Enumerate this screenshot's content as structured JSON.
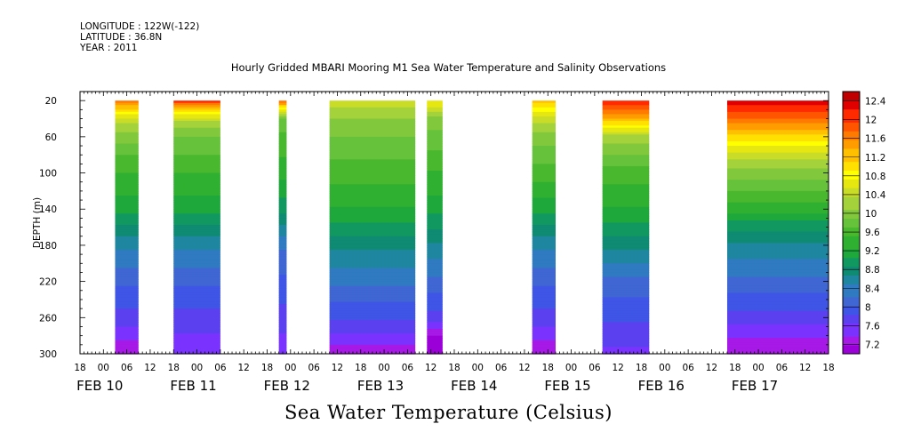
{
  "header": {
    "longitude": "LONGITUDE : 122W(-122)",
    "latitude": "LATITUDE : 36.8N",
    "year": "YEAR : 2011"
  },
  "title": "Hourly Gridded MBARI Mooring M1 Sea Water Temperature and Salinity Observations",
  "bottom_title": "Sea Water Temperature (Celsius)",
  "chart_data": {
    "type": "heatmap",
    "title": "Hourly Gridded MBARI Mooring M1 Sea Water Temperature and Salinity Observations",
    "xlabel": "",
    "ylabel": "DEPTH (m)",
    "colorbar_label": "Sea Water Temperature (Celsius)",
    "x_start": "2011-02-09 18:00",
    "x_end": "2011-02-17 18:00",
    "hour_tick_labels": [
      "18",
      "00",
      "06",
      "12",
      "18",
      "00",
      "06",
      "12",
      "18",
      "00",
      "06",
      "12",
      "18",
      "00",
      "06",
      "12",
      "18",
      "00",
      "06",
      "12",
      "18",
      "00",
      "06",
      "12",
      "18",
      "00",
      "06",
      "12",
      "18",
      "00",
      "06",
      "12",
      "18"
    ],
    "date_labels": [
      "FEB 10",
      "FEB 11",
      "FEB 12",
      "FEB 13",
      "FEB 14",
      "FEB 15",
      "FEB 16",
      "FEB 17"
    ],
    "depth_ticks": [
      20,
      60,
      100,
      140,
      180,
      220,
      260,
      300
    ],
    "ylim": [
      300,
      10
    ],
    "y_inverted": true,
    "colorbar_levels": [
      7.2,
      7.6,
      8,
      8.4,
      8.8,
      9.2,
      9.6,
      10,
      10.4,
      10.8,
      11.2,
      11.6,
      12,
      12.4
    ],
    "colors": [
      "#9b00d9",
      "#a619e6",
      "#7a33ff",
      "#5a40ee",
      "#3f55e6",
      "#3f66d2",
      "#2f7ac0",
      "#1f86a0",
      "#0f8a73",
      "#109860",
      "#1ea83c",
      "#30b030",
      "#4ab82e",
      "#66c23a",
      "#82c83c",
      "#a4d23a",
      "#c8dc28",
      "#e6e610",
      "#ffff00",
      "#ffe000",
      "#ffc000",
      "#ff9c00",
      "#ff7a00",
      "#ff5400",
      "#ff2a00",
      "#e00000",
      "#c00000"
    ],
    "segments": [
      {
        "start": "2011-02-10 03:00",
        "end": "2011-02-10 09:00",
        "profile": [
          [
            20,
            11.6
          ],
          [
            40,
            10.4
          ],
          [
            60,
            10.0
          ],
          [
            80,
            9.7
          ],
          [
            100,
            9.5
          ],
          [
            140,
            9.2
          ],
          [
            160,
            8.9
          ],
          [
            180,
            8.6
          ],
          [
            220,
            8.2
          ],
          [
            260,
            7.9
          ],
          [
            285,
            7.6
          ],
          [
            300,
            7.4
          ]
        ]
      },
      {
        "start": "2011-02-10 18:00",
        "end": "2011-02-11 06:00",
        "profile": [
          [
            20,
            12.0
          ],
          [
            30,
            11.0
          ],
          [
            45,
            10.2
          ],
          [
            60,
            9.9
          ],
          [
            100,
            9.5
          ],
          [
            140,
            9.2
          ],
          [
            160,
            8.9
          ],
          [
            180,
            8.6
          ],
          [
            220,
            8.2
          ],
          [
            260,
            7.9
          ],
          [
            290,
            7.7
          ],
          [
            300,
            7.6
          ]
        ]
      },
      {
        "start": "2011-02-11 21:00",
        "end": "2011-02-11 23:00",
        "profile": [
          [
            20,
            11.6
          ],
          [
            40,
            9.8
          ],
          [
            100,
            9.4
          ],
          [
            140,
            9.0
          ],
          [
            180,
            8.4
          ],
          [
            220,
            8.1
          ],
          [
            260,
            7.9
          ],
          [
            300,
            7.6
          ]
        ]
      },
      {
        "start": "2011-02-12 10:00",
        "end": "2011-02-13 08:00",
        "profile": [
          [
            20,
            10.5
          ],
          [
            30,
            10.2
          ],
          [
            60,
            9.9
          ],
          [
            100,
            9.6
          ],
          [
            140,
            9.3
          ],
          [
            180,
            8.8
          ],
          [
            220,
            8.4
          ],
          [
            260,
            8.0
          ],
          [
            285,
            7.7
          ],
          [
            300,
            7.4
          ]
        ]
      },
      {
        "start": "2011-02-13 11:00",
        "end": "2011-02-13 15:00",
        "profile": [
          [
            20,
            10.7
          ],
          [
            40,
            10.0
          ],
          [
            100,
            9.5
          ],
          [
            140,
            9.2
          ],
          [
            180,
            8.7
          ],
          [
            220,
            8.3
          ],
          [
            260,
            7.9
          ],
          [
            280,
            7.4
          ],
          [
            300,
            7.2
          ]
        ]
      },
      {
        "start": "2011-02-14 14:00",
        "end": "2011-02-14 20:00",
        "profile": [
          [
            20,
            11.2
          ],
          [
            40,
            10.4
          ],
          [
            60,
            10.0
          ],
          [
            100,
            9.6
          ],
          [
            140,
            9.2
          ],
          [
            180,
            8.6
          ],
          [
            220,
            8.2
          ],
          [
            260,
            7.9
          ],
          [
            285,
            7.6
          ],
          [
            300,
            7.4
          ]
        ]
      },
      {
        "start": "2011-02-15 08:00",
        "end": "2011-02-15 20:00",
        "profile": [
          [
            20,
            12.0
          ],
          [
            40,
            11.2
          ],
          [
            60,
            10.2
          ],
          [
            80,
            9.9
          ],
          [
            100,
            9.6
          ],
          [
            140,
            9.3
          ],
          [
            180,
            8.8
          ],
          [
            220,
            8.3
          ],
          [
            260,
            8.0
          ],
          [
            290,
            7.8
          ],
          [
            300,
            7.7
          ]
        ]
      },
      {
        "start": "2011-02-16 16:00",
        "end": "2011-02-17 18:00",
        "profile": [
          [
            20,
            12.2
          ],
          [
            40,
            11.6
          ],
          [
            60,
            11.0
          ],
          [
            80,
            10.4
          ],
          [
            100,
            10.0
          ],
          [
            140,
            9.4
          ],
          [
            160,
            9.0
          ],
          [
            180,
            8.7
          ],
          [
            220,
            8.3
          ],
          [
            260,
            7.9
          ],
          [
            280,
            7.6
          ],
          [
            300,
            7.4
          ]
        ]
      }
    ]
  }
}
